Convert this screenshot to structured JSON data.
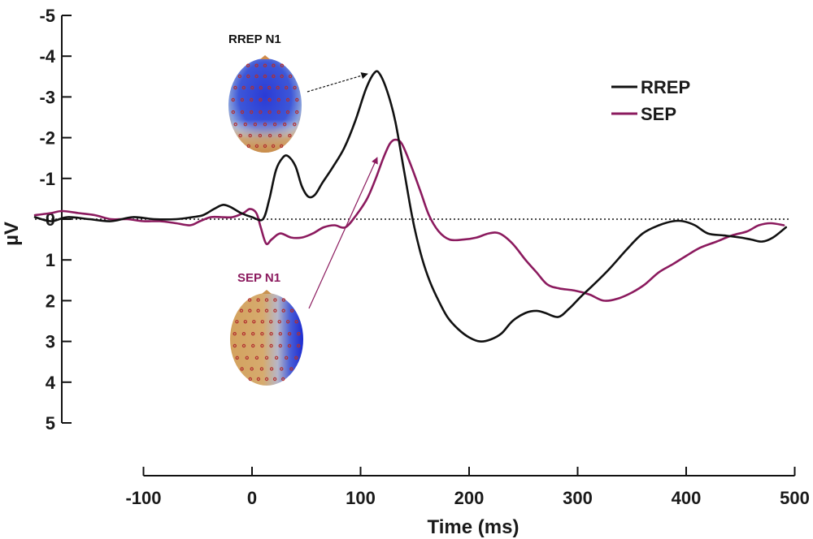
{
  "chart_data": {
    "type": "line",
    "xlabel": "Time (ms)",
    "ylabel": "µV",
    "xlim": [
      -200,
      500
    ],
    "ylim": [
      -5,
      5
    ],
    "y_inverted": true,
    "xticks": [
      -100,
      0,
      100,
      200,
      300,
      400,
      500
    ],
    "yticks": [
      -5,
      -4,
      -3,
      -2,
      -1,
      0,
      1,
      2,
      3,
      4,
      5
    ],
    "zero_line": "dotted",
    "grid": false,
    "legend_position": "top-right",
    "series": [
      {
        "name": "RREP",
        "color": "#111111",
        "points": [
          [
            -200,
            -0.05
          ],
          [
            -185,
            0.05
          ],
          [
            -170,
            -0.05
          ],
          [
            -150,
            0.0
          ],
          [
            -130,
            0.05
          ],
          [
            -110,
            -0.05
          ],
          [
            -90,
            0.0
          ],
          [
            -70,
            0.0
          ],
          [
            -55,
            -0.05
          ],
          [
            -45,
            -0.1
          ],
          [
            -35,
            -0.25
          ],
          [
            -27,
            -0.35
          ],
          [
            -20,
            -0.3
          ],
          [
            -10,
            -0.15
          ],
          [
            0,
            -0.05
          ],
          [
            10,
            0.0
          ],
          [
            16,
            -0.5
          ],
          [
            22,
            -1.2
          ],
          [
            28,
            -1.5
          ],
          [
            33,
            -1.55
          ],
          [
            40,
            -1.3
          ],
          [
            46,
            -0.8
          ],
          [
            52,
            -0.55
          ],
          [
            58,
            -0.6
          ],
          [
            65,
            -0.9
          ],
          [
            75,
            -1.3
          ],
          [
            85,
            -1.75
          ],
          [
            95,
            -2.4
          ],
          [
            105,
            -3.2
          ],
          [
            113,
            -3.6
          ],
          [
            118,
            -3.55
          ],
          [
            125,
            -3.1
          ],
          [
            132,
            -2.4
          ],
          [
            140,
            -1.2
          ],
          [
            148,
            0.0
          ],
          [
            155,
            0.8
          ],
          [
            162,
            1.4
          ],
          [
            170,
            1.9
          ],
          [
            180,
            2.4
          ],
          [
            190,
            2.7
          ],
          [
            200,
            2.9
          ],
          [
            210,
            3.0
          ],
          [
            220,
            2.95
          ],
          [
            230,
            2.8
          ],
          [
            240,
            2.5
          ],
          [
            252,
            2.3
          ],
          [
            262,
            2.25
          ],
          [
            270,
            2.3
          ],
          [
            282,
            2.4
          ],
          [
            292,
            2.2
          ],
          [
            303,
            1.9
          ],
          [
            315,
            1.6
          ],
          [
            330,
            1.2
          ],
          [
            345,
            0.75
          ],
          [
            360,
            0.35
          ],
          [
            375,
            0.15
          ],
          [
            388,
            0.05
          ],
          [
            397,
            0.05
          ],
          [
            408,
            0.15
          ],
          [
            420,
            0.35
          ],
          [
            435,
            0.4
          ],
          [
            450,
            0.45
          ],
          [
            460,
            0.5
          ],
          [
            470,
            0.55
          ],
          [
            480,
            0.45
          ],
          [
            492,
            0.2
          ]
        ]
      },
      {
        "name": "SEP",
        "color": "#8b1a5e",
        "points": [
          [
            -200,
            -0.1
          ],
          [
            -185,
            -0.15
          ],
          [
            -175,
            -0.2
          ],
          [
            -160,
            -0.15
          ],
          [
            -145,
            -0.1
          ],
          [
            -130,
            0.0
          ],
          [
            -115,
            0.0
          ],
          [
            -100,
            0.05
          ],
          [
            -85,
            0.05
          ],
          [
            -70,
            0.1
          ],
          [
            -57,
            0.15
          ],
          [
            -48,
            0.05
          ],
          [
            -38,
            -0.05
          ],
          [
            -28,
            -0.05
          ],
          [
            -18,
            -0.05
          ],
          [
            -8,
            -0.15
          ],
          [
            -2,
            -0.25
          ],
          [
            4,
            -0.15
          ],
          [
            8,
            0.2
          ],
          [
            13,
            0.6
          ],
          [
            18,
            0.5
          ],
          [
            26,
            0.35
          ],
          [
            36,
            0.45
          ],
          [
            46,
            0.45
          ],
          [
            56,
            0.35
          ],
          [
            66,
            0.2
          ],
          [
            76,
            0.15
          ],
          [
            86,
            0.2
          ],
          [
            96,
            -0.1
          ],
          [
            106,
            -0.5
          ],
          [
            114,
            -1.0
          ],
          [
            121,
            -1.5
          ],
          [
            127,
            -1.85
          ],
          [
            132,
            -1.95
          ],
          [
            138,
            -1.85
          ],
          [
            146,
            -1.35
          ],
          [
            155,
            -0.7
          ],
          [
            163,
            -0.1
          ],
          [
            172,
            0.3
          ],
          [
            182,
            0.5
          ],
          [
            195,
            0.5
          ],
          [
            207,
            0.45
          ],
          [
            218,
            0.35
          ],
          [
            228,
            0.35
          ],
          [
            240,
            0.6
          ],
          [
            252,
            1.0
          ],
          [
            262,
            1.3
          ],
          [
            272,
            1.6
          ],
          [
            283,
            1.7
          ],
          [
            297,
            1.75
          ],
          [
            311,
            1.85
          ],
          [
            324,
            2.0
          ],
          [
            337,
            1.95
          ],
          [
            350,
            1.8
          ],
          [
            362,
            1.6
          ],
          [
            375,
            1.3
          ],
          [
            388,
            1.1
          ],
          [
            400,
            0.9
          ],
          [
            413,
            0.7
          ],
          [
            428,
            0.55
          ],
          [
            442,
            0.4
          ],
          [
            456,
            0.3
          ],
          [
            467,
            0.15
          ],
          [
            478,
            0.1
          ],
          [
            490,
            0.15
          ]
        ]
      }
    ],
    "annotations": [
      {
        "text": "RREP N1",
        "color": "#111111"
      },
      {
        "text": "SEP N1",
        "color": "#8b1a5e"
      }
    ]
  }
}
